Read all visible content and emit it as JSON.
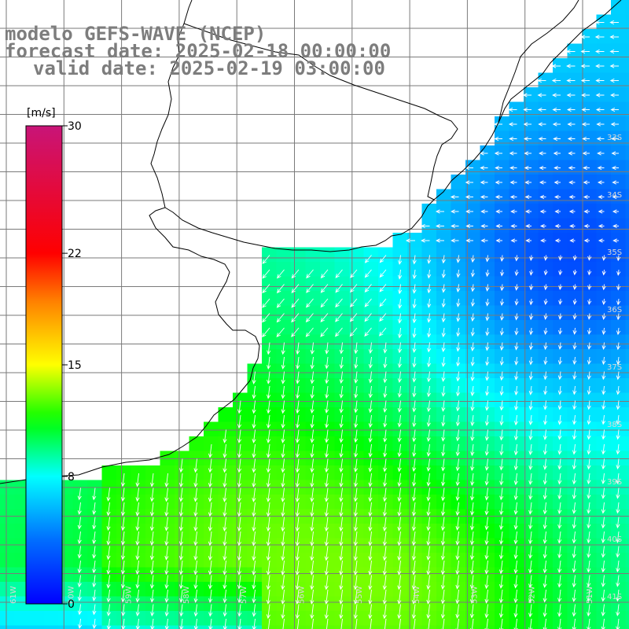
{
  "title": {
    "line1": "modelo GEFS-WAVE (NCEP)",
    "line2": "forecast date: 2025-02-18 00:00:00",
    "line3": "valid date: 2025-02-19 03:00:00"
  },
  "colorbar": {
    "unit": "[m/s]",
    "min": 0,
    "max": 30,
    "tick_labels": [
      "30",
      "22",
      "15",
      "8",
      "0"
    ],
    "tick_values": [
      30,
      22,
      15,
      8,
      0
    ],
    "colors": [
      "#0000ff",
      "#00c8ff",
      "#00ffff",
      "#00ff00",
      "#ffff00",
      "#ff8000",
      "#ff0000",
      "#c81478"
    ]
  },
  "lat_labels": [
    "33S",
    "34S",
    "35S",
    "36S",
    "37S",
    "38S",
    "39S",
    "40S",
    "41S"
  ],
  "lon_labels": [
    "61W",
    "60W",
    "59W",
    "58W",
    "57W",
    "56W",
    "55W",
    "54W",
    "53W",
    "52W",
    "51W"
  ],
  "wind_field": {
    "description_units": "m/s",
    "regions": [
      {
        "area": "northeast offshore (Uruguay/Brazil shelf)",
        "speed_range": [
          2,
          5
        ],
        "direction": "from east/northeast"
      },
      {
        "area": "Rio de la Plata mouth",
        "speed_range": [
          6,
          9
        ],
        "direction": "from east"
      },
      {
        "area": "central offshore",
        "speed_range": [
          7,
          9
        ],
        "direction": "from north"
      },
      {
        "area": "south and southwest",
        "speed_range": [
          10,
          13
        ],
        "direction": "from north/northwest"
      }
    ]
  }
}
